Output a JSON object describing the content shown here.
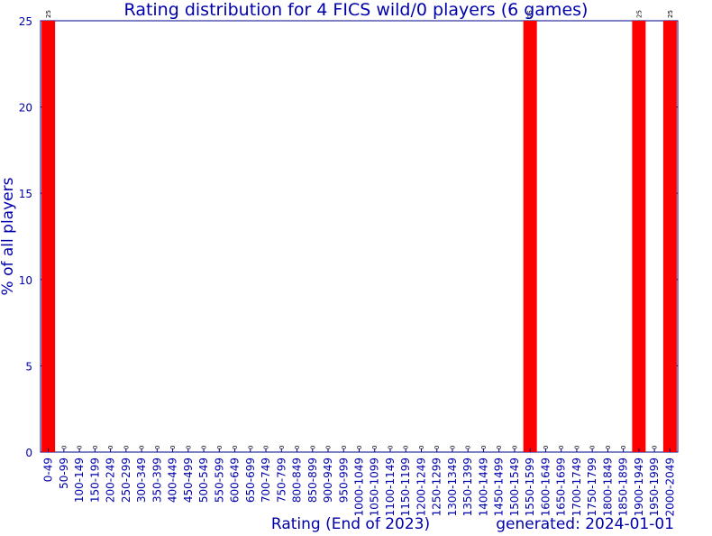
{
  "chart_data": {
    "type": "bar",
    "title": "Rating distribution for 4 FICS wild/0 players (6 games)",
    "xlabel": "Rating (End of 2023)",
    "ylabel": "% of all players",
    "footer": "generated: 2024-01-01",
    "ylim": [
      0,
      25
    ],
    "yticks": [
      0,
      5,
      10,
      15,
      20,
      25
    ],
    "grid": false,
    "legend": "none",
    "colors": {
      "bar": "#ff0000",
      "axis": "#00008b",
      "text": "#0000aa"
    },
    "categories": [
      "0-49",
      "50-99",
      "100-149",
      "150-199",
      "200-249",
      "250-299",
      "300-349",
      "350-399",
      "400-449",
      "450-499",
      "500-549",
      "550-599",
      "600-649",
      "650-699",
      "700-749",
      "750-799",
      "800-849",
      "850-899",
      "900-949",
      "950-999",
      "1000-1049",
      "1050-1099",
      "1100-1149",
      "1150-1199",
      "1200-1249",
      "1250-1299",
      "1300-1349",
      "1350-1399",
      "1400-1449",
      "1450-1499",
      "1500-1549",
      "1550-1599",
      "1600-1649",
      "1650-1699",
      "1700-1749",
      "1750-1799",
      "1800-1849",
      "1850-1899",
      "1900-1949",
      "1950-1999",
      "2000-2049"
    ],
    "values": [
      25,
      0,
      0,
      0,
      0,
      0,
      0,
      0,
      0,
      0,
      0,
      0,
      0,
      0,
      0,
      0,
      0,
      0,
      0,
      0,
      0,
      0,
      0,
      0,
      0,
      0,
      0,
      0,
      0,
      0,
      0,
      25,
      0,
      0,
      0,
      0,
      0,
      0,
      25,
      0,
      25
    ]
  }
}
